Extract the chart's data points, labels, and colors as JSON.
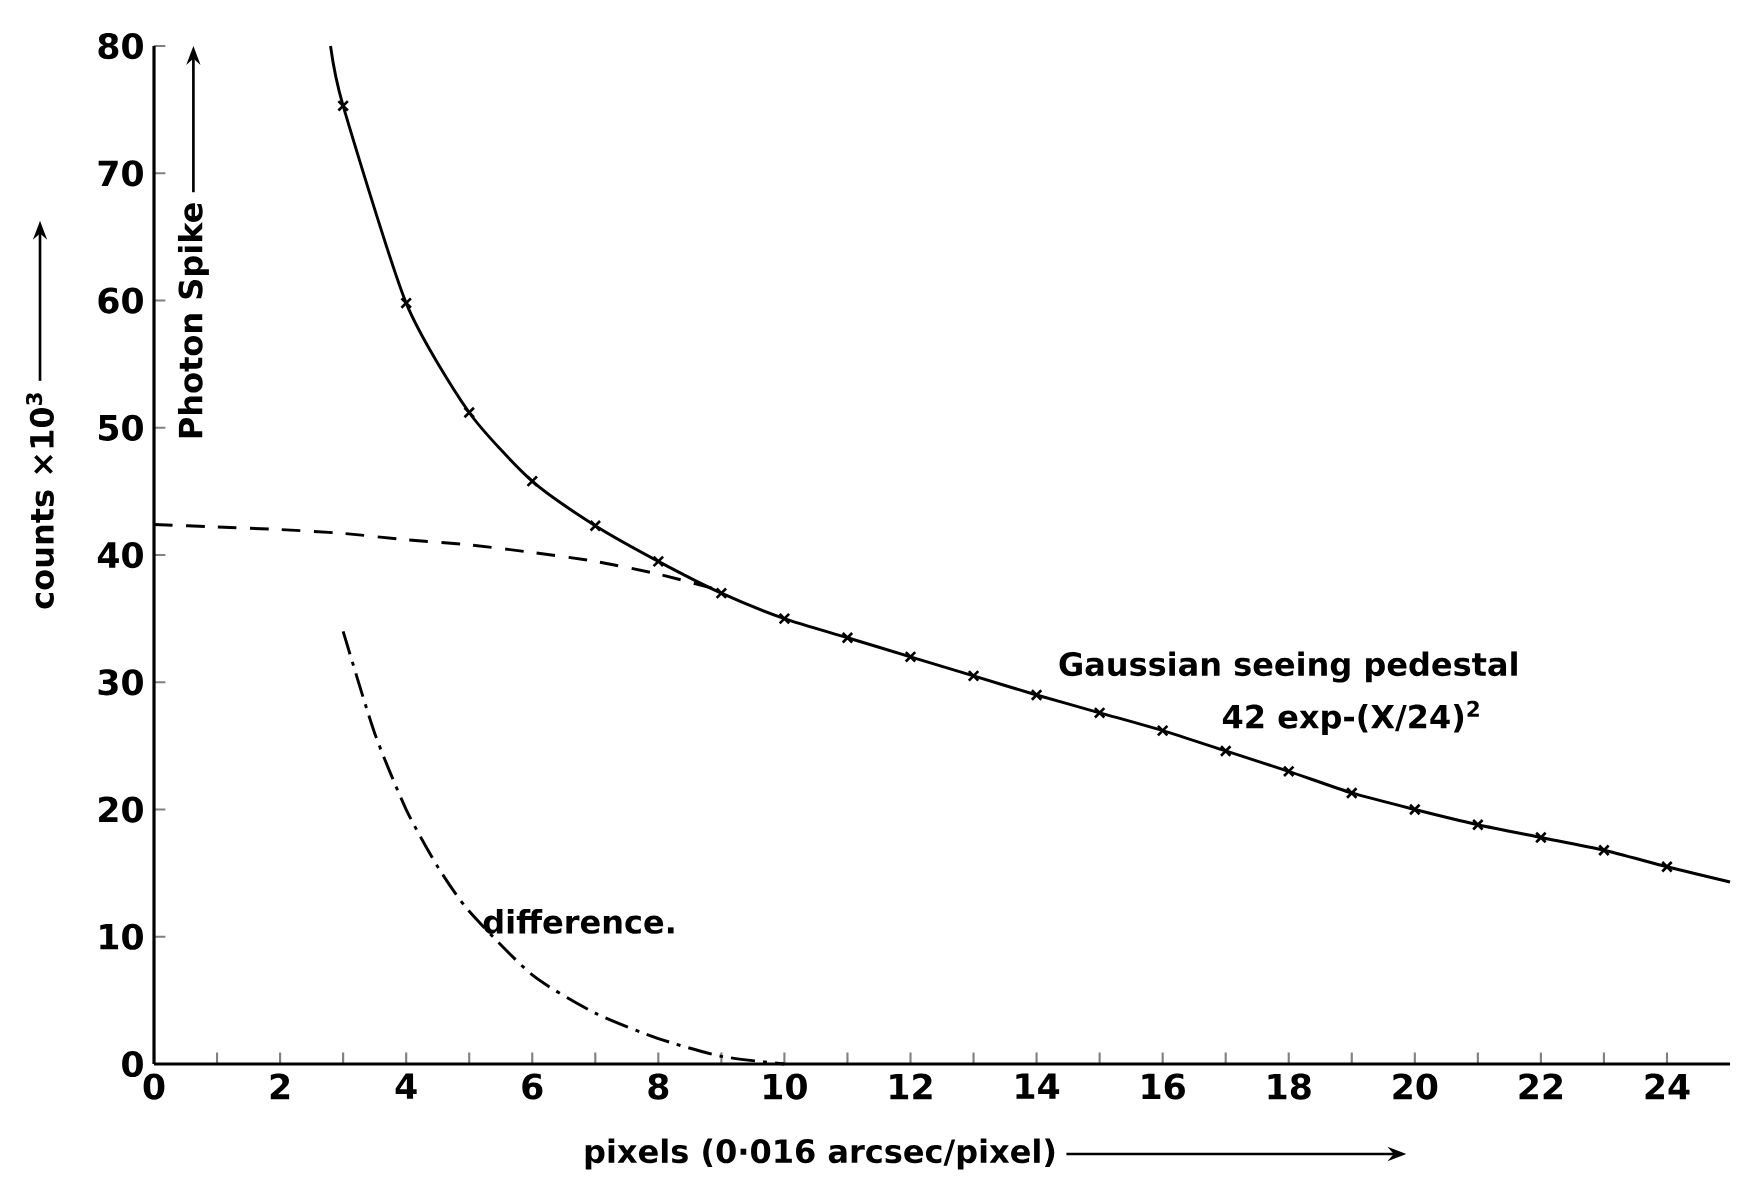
{
  "chart_data": {
    "type": "line",
    "xlabel": "pixels (0·016 arcsec/pixel)",
    "ylabel": "counts ×10$^{3}$",
    "xlim": [
      0,
      25
    ],
    "ylim": [
      0,
      80
    ],
    "xticks": [
      0,
      {
        "value": 1,
        "label": null
      },
      2,
      {
        "value": 3,
        "label": null
      },
      4,
      {
        "value": 5,
        "label": null
      },
      6,
      {
        "value": 7,
        "label": null
      },
      8,
      {
        "value": 9,
        "label": null
      },
      10,
      {
        "value": 11,
        "label": null
      },
      12,
      {
        "value": 13,
        "label": null
      },
      14,
      {
        "value": 15,
        "label": null
      },
      16,
      {
        "value": 17,
        "label": null
      },
      18,
      {
        "value": 19,
        "label": null
      },
      20,
      {
        "value": 21,
        "label": null
      },
      22,
      {
        "value": 23,
        "label": null
      },
      24
    ],
    "yticks": [
      0,
      10,
      20,
      30,
      40,
      50,
      60,
      70,
      80
    ],
    "grid": false,
    "series": [
      {
        "type": "line",
        "color": "#000000",
        "line_style": "solid",
        "marker": "none",
        "x": [
          2.8,
          3,
          4,
          5,
          6,
          7,
          8,
          9,
          10,
          11,
          12,
          13,
          14,
          15,
          16,
          17,
          18,
          19,
          20,
          21,
          22,
          23,
          24,
          25
        ],
        "values": [
          80,
          75.3,
          59.8,
          51.2,
          45.8,
          42.3,
          39.5,
          37,
          35,
          33.5,
          32,
          30.5,
          29,
          27.6,
          26.2,
          24.6,
          23,
          21.3,
          20,
          18.8,
          17.8,
          16.8,
          15.5,
          14.3
        ]
      },
      {
        "type": "scatter",
        "color": "#000000",
        "marker": "cross",
        "x": [
          3,
          4,
          5,
          6,
          7,
          8,
          9,
          10,
          11,
          12,
          13,
          14,
          15,
          16,
          17,
          18,
          19,
          20,
          21,
          22,
          23,
          24
        ],
        "values": [
          75.3,
          59.8,
          51.2,
          45.8,
          42.3,
          39.5,
          37,
          35,
          33.5,
          32,
          30.5,
          29,
          27.6,
          26.2,
          24.6,
          23,
          21.3,
          20,
          18.8,
          17.8,
          16.8,
          15.5
        ]
      },
      {
        "type": "line",
        "color": "#000000",
        "line_style": "dashed",
        "marker": "none",
        "x": [
          0,
          1,
          2,
          3,
          4,
          5,
          6,
          7,
          8,
          9
        ],
        "values": [
          42.4,
          42.2,
          42,
          41.7,
          41.2,
          40.8,
          40.2,
          39.5,
          38.5,
          37.2
        ]
      },
      {
        "type": "line",
        "color": "#000000",
        "line_style": "dashdot",
        "marker": "none",
        "x": [
          3,
          3.5,
          4,
          4.5,
          5,
          6,
          7,
          8,
          9,
          10
        ],
        "values": [
          34,
          26,
          20,
          15.5,
          12,
          7,
          4,
          2,
          0.6,
          0
        ]
      }
    ],
    "annotations": [
      "Photon Spike",
      "Gaussian seeing pedestal",
      "42 exp-(X/24)$^{2}$",
      "difference."
    ]
  }
}
